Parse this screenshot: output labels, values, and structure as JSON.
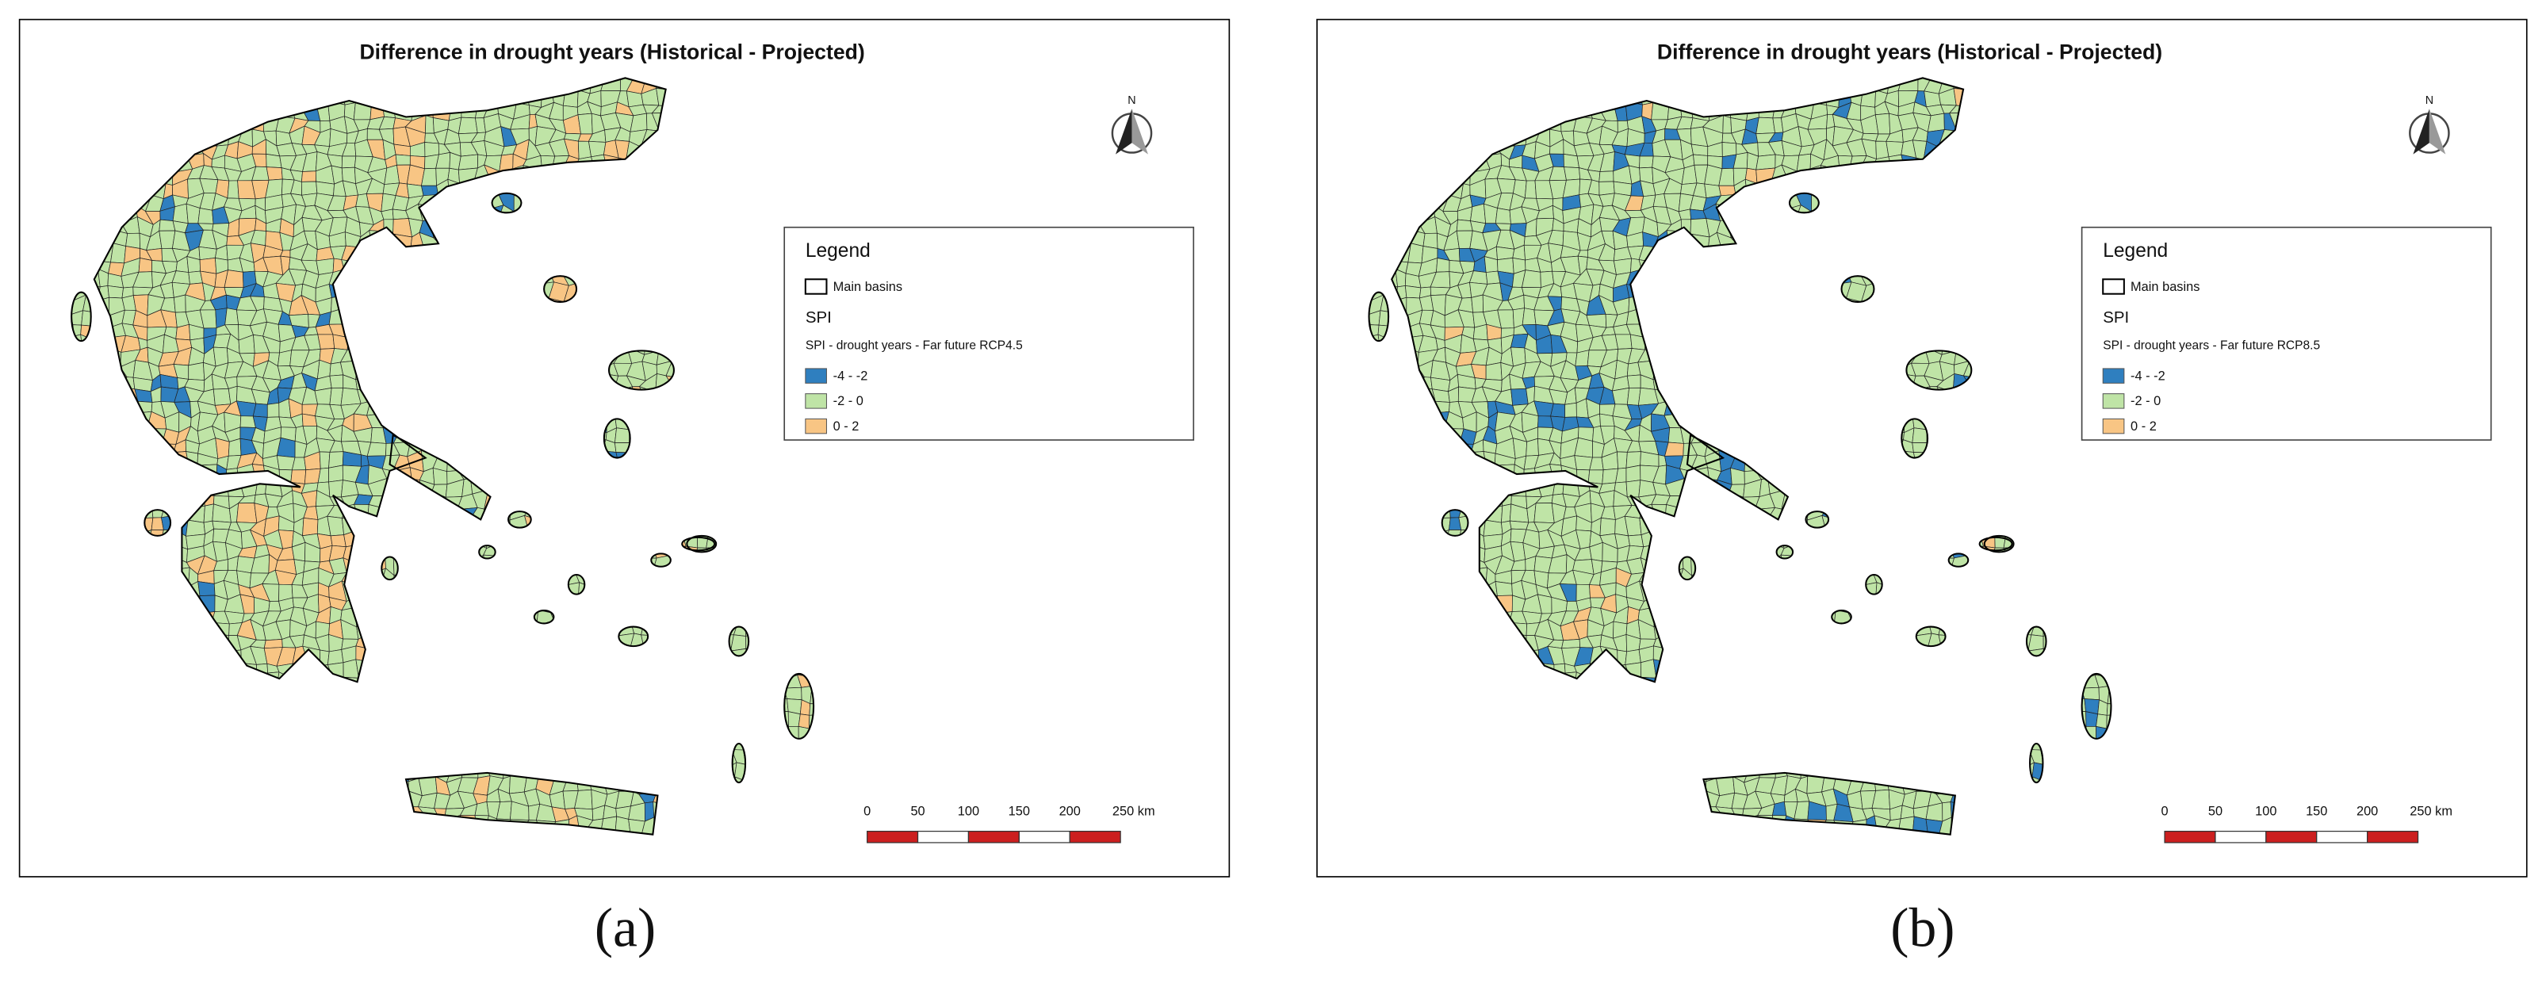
{
  "panels": [
    {
      "title": "Difference in drought years (Historical - Projected)",
      "legend": {
        "title": "Legend",
        "basins": "Main basins",
        "group": "SPI",
        "layer": "SPI - drought years - Far future RCP4.5",
        "classes": [
          {
            "label": "-4 - -2",
            "color": "#2f7fbf"
          },
          {
            "label": "-2 - 0",
            "color": "#bfe4a6"
          },
          {
            "label": "0 - 2",
            "color": "#f8c584"
          }
        ]
      },
      "north": "N",
      "scale": [
        "0",
        "50",
        "100",
        "150",
        "200",
        "250 km"
      ],
      "caption": "(a)"
    },
    {
      "title": "Difference in drought years (Historical - Projected)",
      "legend": {
        "title": "Legend",
        "basins": "Main basins",
        "group": "SPI",
        "layer": "SPI - drought years - Far future RCP8.5",
        "classes": [
          {
            "label": "-4 - -2",
            "color": "#2f7fbf"
          },
          {
            "label": "-2 - 0",
            "color": "#bfe4a6"
          },
          {
            "label": "0 - 2",
            "color": "#f8c584"
          }
        ]
      },
      "north": "N",
      "scale": [
        "0",
        "50",
        "100",
        "150",
        "200",
        "250 km"
      ],
      "caption": "(b)"
    }
  ]
}
